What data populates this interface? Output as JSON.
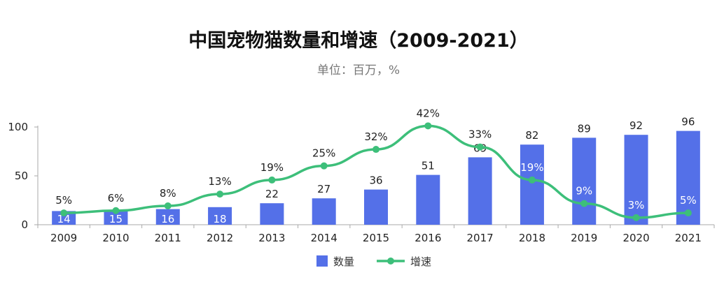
{
  "chart_data": {
    "type": "bar+line",
    "title": "中国宠物猫数量和增速（2009-2021）",
    "subtitle": "单位：百万，%",
    "categories": [
      "2009",
      "2010",
      "2011",
      "2012",
      "2013",
      "2014",
      "2015",
      "2016",
      "2017",
      "2018",
      "2019",
      "2020",
      "2021"
    ],
    "series": [
      {
        "name": "数量",
        "type": "bar",
        "axis": "left",
        "color": "#5470e8",
        "values": [
          14,
          15,
          16,
          18,
          22,
          27,
          36,
          51,
          69,
          82,
          89,
          92,
          96
        ]
      },
      {
        "name": "增速",
        "type": "line",
        "axis": "right-hidden",
        "color": "#3dbf7a",
        "unit": "%",
        "values": [
          5,
          6,
          8,
          13,
          19,
          25,
          32,
          42,
          33,
          19,
          9,
          3,
          5
        ]
      }
    ],
    "yticks": [
      "0",
      "50",
      "100"
    ],
    "ylim": [
      0,
      100
    ],
    "y2lim": [
      0,
      41.5
    ],
    "grid": false,
    "legend": "bottom"
  }
}
